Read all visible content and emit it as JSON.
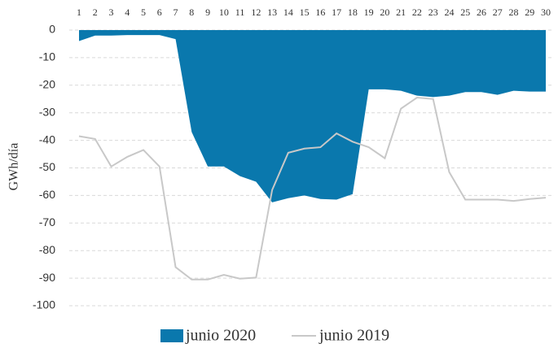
{
  "chart_data": {
    "type": "area",
    "y_label": "GWh/día",
    "categories": [
      "1",
      "2",
      "3",
      "4",
      "5",
      "6",
      "7",
      "8",
      "9",
      "10",
      "11",
      "12",
      "13",
      "14",
      "15",
      "16",
      "17",
      "18",
      "19",
      "20",
      "21",
      "22",
      "23",
      "24",
      "25",
      "26",
      "27",
      "28",
      "29",
      "30"
    ],
    "ylim": [
      -100,
      0
    ],
    "yticks": [
      0,
      -10,
      -20,
      -30,
      -40,
      -50,
      -60,
      -70,
      -80,
      -90,
      -100
    ],
    "grid": true,
    "legend": "bottom",
    "series": [
      {
        "name": "junio 2020",
        "type": "area",
        "color": "#0a78ad",
        "values": [
          -4,
          -2,
          -2,
          -1.8,
          -1.8,
          -1.8,
          -3.3,
          -37,
          -49.5,
          -49.5,
          -53,
          -55,
          -62.5,
          -61,
          -60,
          -61.3,
          -61.5,
          -59.5,
          -21.5,
          -21.5,
          -22,
          -23.8,
          -24.3,
          -23.8,
          -22.5,
          -22.5,
          -23.5,
          -22,
          -22.3,
          -22.3
        ]
      },
      {
        "name": "junio 2019",
        "type": "line",
        "color": "#c8c8c8",
        "values": [
          -38.5,
          -39.5,
          -49.5,
          -46,
          -43.5,
          -49.5,
          -86,
          -90.5,
          -90.5,
          -88.8,
          -90.2,
          -89.8,
          -58,
          -44.5,
          -43,
          -42.5,
          -37.5,
          -40.5,
          -42.5,
          -46.5,
          -28.5,
          -24.5,
          -25,
          -51.5,
          -61.5,
          -61.5,
          -61.5,
          -62,
          -61.3,
          -60.8
        ]
      }
    ]
  }
}
